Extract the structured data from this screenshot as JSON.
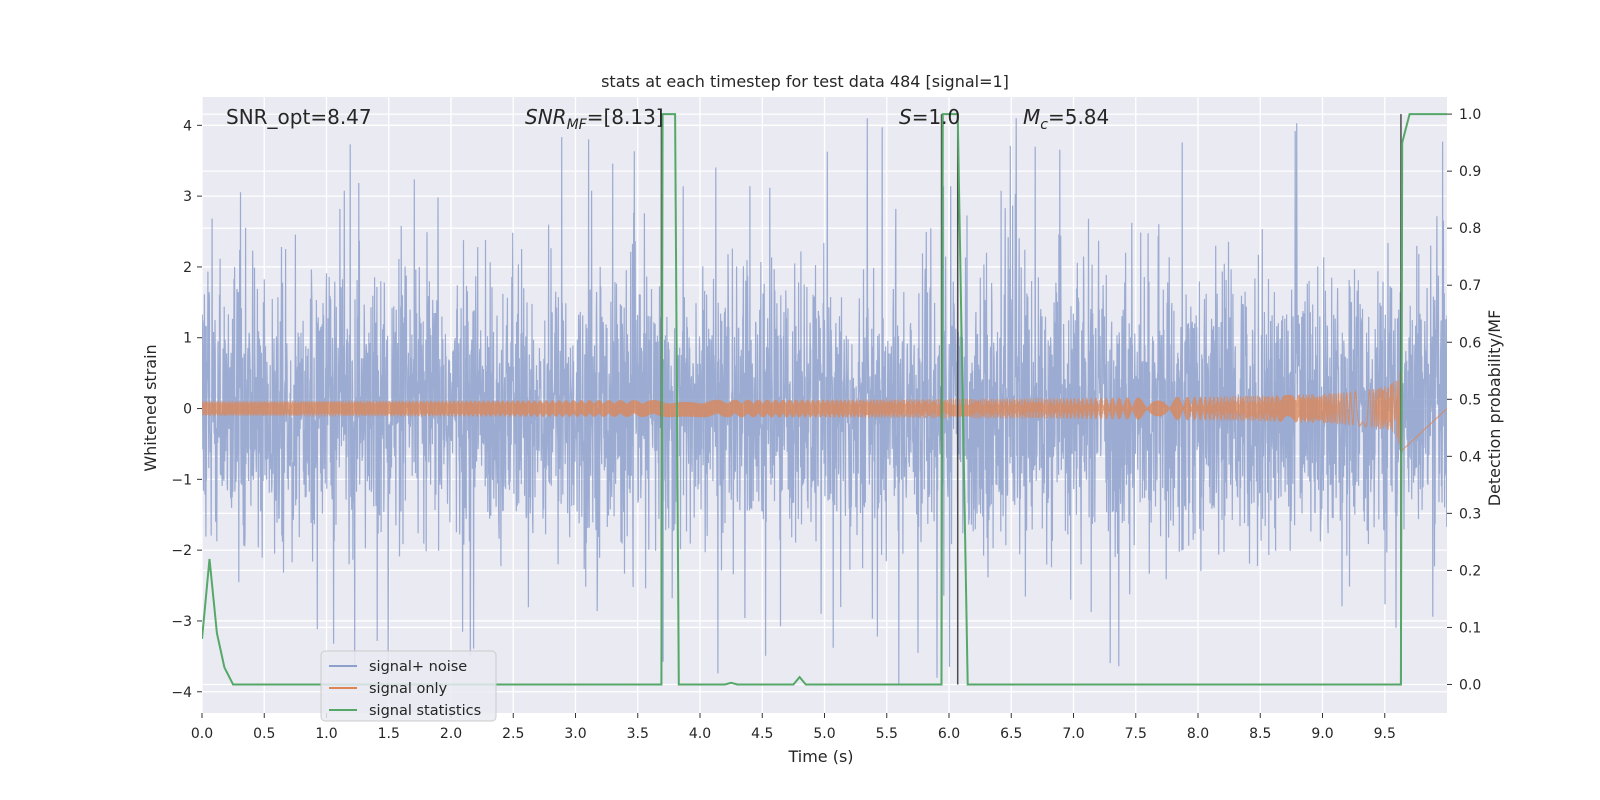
{
  "chart_data": {
    "type": "line",
    "title": "stats at each timestep for test data 484 [signal=1]",
    "xlabel": "Time (s)",
    "ylabel": "Whitened strain",
    "y2label": "Detection probability/MF",
    "xlim": [
      0,
      10
    ],
    "ylim": [
      -4.3,
      4.4
    ],
    "y2lim": [
      -0.05,
      1.03
    ],
    "xticks": [
      "0.0",
      "0.5",
      "1.0",
      "1.5",
      "2.0",
      "2.5",
      "3.0",
      "3.5",
      "4.0",
      "4.5",
      "5.0",
      "5.5",
      "6.0",
      "6.5",
      "7.0",
      "7.5",
      "8.0",
      "8.5",
      "9.0",
      "9.5"
    ],
    "yticks": [
      "4",
      "3",
      "2",
      "1",
      "0",
      "−1",
      "−2",
      "−3",
      "−4"
    ],
    "y2ticks": [
      "1.0",
      "0.9",
      "0.8",
      "0.7",
      "0.6",
      "0.5",
      "0.4",
      "0.3",
      "0.2",
      "0.1",
      "0.0"
    ],
    "grid": true,
    "legend_position": "lower-left",
    "annotations": [
      {
        "prefix": "SNR_opt=",
        "value": "8.47"
      },
      {
        "prefix": "SNR",
        "sub": "MF",
        "suffix": "=[8.13]"
      },
      {
        "prefix": "S",
        "suffix": "=1.0"
      },
      {
        "prefix": "M",
        "sub": "c",
        "suffix": "=5.84"
      }
    ],
    "series": [
      {
        "name": "signal+ noise",
        "color": "#8da0cb",
        "note_style": "noisy, approx ±1.5 with spikes to ±4"
      },
      {
        "name": "signal only",
        "color": "#dd8452",
        "chirp_peak_time": 9.63,
        "chirp_peak_amplitude": 0.75
      },
      {
        "name": "signal statistics",
        "color": "#55a868",
        "x": [
          0.0,
          0.06,
          0.12,
          0.18,
          0.25,
          3.69,
          3.7,
          3.75,
          3.8,
          3.83,
          3.9,
          4.0,
          4.2,
          4.25,
          4.3,
          4.75,
          4.8,
          4.85,
          5.94,
          5.95,
          6.0,
          6.07,
          6.15,
          6.2,
          9.63,
          9.64,
          9.7,
          10.0
        ],
        "y": [
          0.08,
          0.22,
          0.09,
          0.03,
          0.0,
          0.0,
          1.0,
          1.0,
          1.0,
          0.0,
          0.0,
          0.0,
          0.0,
          0.003,
          0.0,
          0.0,
          0.013,
          0.0,
          0.0,
          1.0,
          1.0,
          1.0,
          0.0,
          0.0,
          0.0,
          0.95,
          1.0,
          1.0
        ]
      }
    ],
    "vertical_lines": [
      3.69,
      5.94,
      6.07,
      9.63
    ]
  }
}
